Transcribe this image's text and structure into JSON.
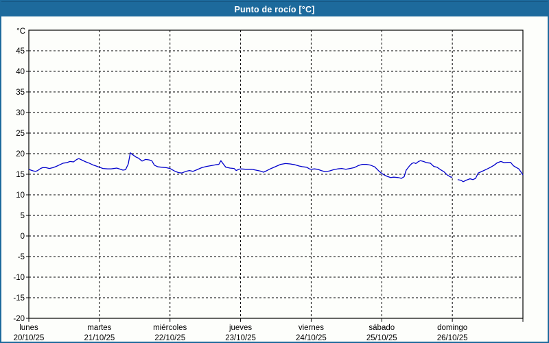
{
  "window": {
    "title": "Punto de rocío [°C]"
  },
  "colors": {
    "accent": "#1d6a9c",
    "line": "#0000cc",
    "grid": "#000000",
    "text": "#000000",
    "plot_background": "#fdfefb"
  },
  "chart_data": {
    "type": "line",
    "title": "Punto de rocío [°C]",
    "unit_label": "°C",
    "ylim": [
      -20,
      50
    ],
    "yticks": [
      45,
      40,
      35,
      30,
      25,
      20,
      15,
      10,
      5,
      0,
      -5,
      -10,
      -15,
      -20
    ],
    "grid": "dashed",
    "legend_position": "none",
    "x_axis": {
      "span_hours": 168,
      "days": [
        {
          "name": "lunes",
          "date": "20/10/25"
        },
        {
          "name": "martes",
          "date": "21/10/25"
        },
        {
          "name": "miércoles",
          "date": "22/10/25"
        },
        {
          "name": "jueves",
          "date": "23/10/25"
        },
        {
          "name": "viernes",
          "date": "24/10/25"
        },
        {
          "name": "sábado",
          "date": "25/10/25"
        },
        {
          "name": "domingo",
          "date": "26/10/25"
        }
      ]
    },
    "series": [
      {
        "name": "Punto de rocío",
        "color": "#0000cc",
        "segments": [
          [
            [
              0,
              16.2
            ],
            [
              0.7,
              16.0
            ],
            [
              1.6,
              15.8
            ],
            [
              2.3,
              15.7
            ],
            [
              3.0,
              15.9
            ],
            [
              4.0,
              16.4
            ],
            [
              4.7,
              16.6
            ],
            [
              5.8,
              16.6
            ],
            [
              7.0,
              16.4
            ],
            [
              8.2,
              16.6
            ],
            [
              9.3,
              16.9
            ],
            [
              10.5,
              17.3
            ],
            [
              11.7,
              17.7
            ],
            [
              12.8,
              17.8
            ],
            [
              14.0,
              18.1
            ],
            [
              15.2,
              18.0
            ],
            [
              16.3,
              18.6
            ],
            [
              17.0,
              18.8
            ],
            [
              18.2,
              18.4
            ],
            [
              19.4,
              18.0
            ],
            [
              20.5,
              17.7
            ],
            [
              21.7,
              17.3
            ],
            [
              22.9,
              17.0
            ],
            [
              24.0,
              16.7
            ],
            [
              25.2,
              16.4
            ],
            [
              26.8,
              16.3
            ],
            [
              28.0,
              16.3
            ],
            [
              29.9,
              16.5
            ],
            [
              30.8,
              16.3
            ],
            [
              32.0,
              16.0
            ],
            [
              32.9,
              16.1
            ],
            [
              33.8,
              17.5
            ],
            [
              34.5,
              20.2
            ],
            [
              35.2,
              19.8
            ],
            [
              36.4,
              19.2
            ],
            [
              37.3,
              18.9
            ],
            [
              38.5,
              18.2
            ],
            [
              39.7,
              18.6
            ],
            [
              40.8,
              18.5
            ],
            [
              41.8,
              18.3
            ],
            [
              42.7,
              17.2
            ],
            [
              43.9,
              16.8
            ],
            [
              45.3,
              16.7
            ],
            [
              46.7,
              16.6
            ],
            [
              48.0,
              16.4
            ],
            [
              49.5,
              15.8
            ],
            [
              50.9,
              15.4
            ],
            [
              52.0,
              15.3
            ],
            [
              53.4,
              15.7
            ],
            [
              54.6,
              15.9
            ],
            [
              55.8,
              15.7
            ],
            [
              57.2,
              16.1
            ],
            [
              58.8,
              16.6
            ],
            [
              60.4,
              16.9
            ],
            [
              62.1,
              17.1
            ],
            [
              63.5,
              17.3
            ],
            [
              64.6,
              17.4
            ],
            [
              65.3,
              18.3
            ],
            [
              66.0,
              17.6
            ],
            [
              67.0,
              16.7
            ],
            [
              68.4,
              16.5
            ],
            [
              69.8,
              16.4
            ],
            [
              70.5,
              15.9
            ],
            [
              71.4,
              16.2
            ],
            [
              72.0,
              16.3
            ],
            [
              74.0,
              16.2
            ],
            [
              75.8,
              16.2
            ],
            [
              77.2,
              16.0
            ],
            [
              78.6,
              15.8
            ],
            [
              79.8,
              15.5
            ],
            [
              81.0,
              15.9
            ],
            [
              82.4,
              16.4
            ],
            [
              84.0,
              16.9
            ],
            [
              85.6,
              17.4
            ],
            [
              87.3,
              17.6
            ],
            [
              88.9,
              17.5
            ],
            [
              90.5,
              17.3
            ],
            [
              91.9,
              17.0
            ],
            [
              93.3,
              16.8
            ],
            [
              94.5,
              16.7
            ],
            [
              95.4,
              16.3
            ],
            [
              96.0,
              16.2
            ],
            [
              97.1,
              16.3
            ],
            [
              98.2,
              16.2
            ],
            [
              99.4,
              15.9
            ],
            [
              100.8,
              15.6
            ],
            [
              102.2,
              15.8
            ],
            [
              103.6,
              16.1
            ],
            [
              105.0,
              16.3
            ],
            [
              106.4,
              16.4
            ],
            [
              107.8,
              16.2
            ],
            [
              109.2,
              16.4
            ],
            [
              110.6,
              16.6
            ],
            [
              112.0,
              17.1
            ],
            [
              113.4,
              17.4
            ],
            [
              114.8,
              17.4
            ],
            [
              116.2,
              17.2
            ],
            [
              117.6,
              16.8
            ],
            [
              119.0,
              15.8
            ],
            [
              120.0,
              15.2
            ],
            [
              120.9,
              14.8
            ],
            [
              121.8,
              14.5
            ],
            [
              123.0,
              14.2
            ],
            [
              124.1,
              14.3
            ],
            [
              125.5,
              14.2
            ],
            [
              126.7,
              14.0
            ],
            [
              127.6,
              14.4
            ],
            [
              128.3,
              16.0
            ],
            [
              129.3,
              16.9
            ],
            [
              130.2,
              17.6
            ],
            [
              130.9,
              17.8
            ],
            [
              131.6,
              17.6
            ],
            [
              132.5,
              18.1
            ],
            [
              133.2,
              18.3
            ],
            [
              134.2,
              18.1
            ],
            [
              135.3,
              17.8
            ],
            [
              136.5,
              17.7
            ],
            [
              137.7,
              16.9
            ],
            [
              138.8,
              16.7
            ],
            [
              140.0,
              16.1
            ],
            [
              141.2,
              15.6
            ],
            [
              142.3,
              14.8
            ],
            [
              143.5,
              14.3
            ],
            [
              144.0,
              14.3
            ]
          ],
          [
            [
              145.8,
              13.7
            ],
            [
              147.0,
              13.5
            ],
            [
              147.7,
              13.2
            ],
            [
              148.9,
              13.6
            ],
            [
              150.0,
              13.9
            ],
            [
              151.0,
              13.7
            ],
            [
              151.9,
              14.0
            ],
            [
              152.8,
              15.3
            ],
            [
              153.8,
              15.6
            ],
            [
              154.7,
              15.9
            ],
            [
              155.9,
              16.3
            ],
            [
              157.0,
              16.7
            ],
            [
              158.2,
              17.2
            ],
            [
              159.3,
              17.8
            ],
            [
              160.5,
              18.1
            ],
            [
              161.7,
              17.8
            ],
            [
              162.8,
              17.9
            ],
            [
              163.8,
              17.9
            ],
            [
              164.7,
              17.1
            ],
            [
              165.6,
              16.7
            ],
            [
              166.6,
              16.3
            ],
            [
              167.3,
              15.6
            ],
            [
              168.0,
              14.8
            ]
          ]
        ]
      }
    ]
  }
}
